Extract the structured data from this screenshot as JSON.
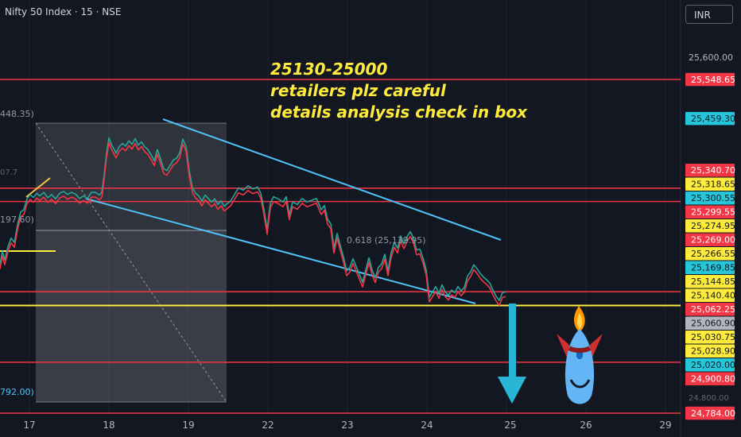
{
  "header": {
    "symbol": "Nifty 50 Index · 15 · NSE",
    "currency": "INR"
  },
  "annotation_lines": [
    "25130-25000",
    "retailers plz careful",
    "details analysis check in box"
  ],
  "fib_label": "0.618 (25,139.95)",
  "left_labels": [
    "448.35)",
    "197.60)",
    "792.00)",
    "07.7"
  ],
  "colors": {
    "bg": "#131722",
    "red": "#f23645",
    "yellow": "#ffeb3b",
    "cyan": "#4fc3f7",
    "green": "#26a69a",
    "grey": "#787b86"
  },
  "chart_data": {
    "type": "line",
    "symbol": "Nifty 50 Index",
    "interval": "15",
    "exchange": "NSE",
    "x_ticks": [
      "17",
      "18",
      "19",
      "22",
      "23",
      "24",
      "25",
      "26",
      "29"
    ],
    "y_ticks": [
      "25,600.00",
      "24,800.00"
    ],
    "price_labels": [
      {
        "text": "25,548.65",
        "bg": "#f23645",
        "fg": "#ffffff",
        "level": 25548.65
      },
      {
        "text": "25,459.30",
        "bg": "#26c6da",
        "fg": "#131722",
        "level": 25459.3
      },
      {
        "text": "25,340.70",
        "bg": "#f23645",
        "fg": "#ffffff",
        "level": 25340.7
      },
      {
        "text": "25,318.65",
        "bg": "#ffeb3b",
        "fg": "#131722",
        "level": 25318.65
      },
      {
        "text": "25,300.55",
        "bg": "#26c6da",
        "fg": "#131722",
        "level": 25300.55
      },
      {
        "text": "25,299.55",
        "bg": "#f23645",
        "fg": "#ffffff",
        "level": 25299.55
      },
      {
        "text": "25,274.95",
        "bg": "#ffeb3b",
        "fg": "#131722",
        "level": 25274.95
      },
      {
        "text": "25,269.00",
        "bg": "#f23645",
        "fg": "#ffffff",
        "level": 25269.0
      },
      {
        "text": "25,266.55",
        "bg": "#ffeb3b",
        "fg": "#131722",
        "level": 25266.55
      },
      {
        "text": "25,169.85",
        "bg": "#26c6da",
        "fg": "#131722",
        "level": 25169.85
      },
      {
        "text": "25,144.85",
        "bg": "#ffeb3b",
        "fg": "#131722",
        "level": 25144.85
      },
      {
        "text": "25,140.40",
        "bg": "#ffeb3b",
        "fg": "#131722",
        "level": 25140.4
      },
      {
        "text": "25,062.25",
        "bg": "#f23645",
        "fg": "#ffffff",
        "level": 25062.25
      },
      {
        "text": "25,060.90",
        "bg": "#b2b5be",
        "fg": "#131722",
        "level": 25060.9
      },
      {
        "text": "25,030.75",
        "bg": "#ffeb3b",
        "fg": "#131722",
        "level": 25030.75
      },
      {
        "text": "25,028.90",
        "bg": "#ffeb3b",
        "fg": "#131722",
        "level": 25028.9
      },
      {
        "text": "25,020.00",
        "bg": "#26c6da",
        "fg": "#131722",
        "level": 25020.0
      },
      {
        "text": "24,900.80",
        "bg": "#f23645",
        "fg": "#ffffff",
        "level": 24900.8
      },
      {
        "text": "24,784.00",
        "bg": "#f23645",
        "fg": "#ffffff",
        "level": 24784.0
      }
    ],
    "horizontal_levels": [
      {
        "value": 25548.65,
        "color": "red"
      },
      {
        "value": 25299.55,
        "color": "red"
      },
      {
        "value": 25269.0,
        "color": "red"
      },
      {
        "value": 25062.25,
        "color": "red"
      },
      {
        "value": 25030.75,
        "color": "yellow"
      },
      {
        "value": 24900.8,
        "color": "red"
      },
      {
        "value": 24784.0,
        "color": "red"
      }
    ],
    "price_series": [
      [
        0,
        25125
      ],
      [
        3,
        25155
      ],
      [
        6,
        25135
      ],
      [
        10,
        25165
      ],
      [
        14,
        25185
      ],
      [
        18,
        25175
      ],
      [
        22,
        25215
      ],
      [
        26,
        25245
      ],
      [
        30,
        25250
      ],
      [
        34,
        25275
      ],
      [
        38,
        25285
      ],
      [
        42,
        25278
      ],
      [
        46,
        25288
      ],
      [
        50,
        25282
      ],
      [
        55,
        25290
      ],
      [
        60,
        25278
      ],
      [
        65,
        25285
      ],
      [
        70,
        25275
      ],
      [
        75,
        25288
      ],
      [
        80,
        25292
      ],
      [
        85,
        25285
      ],
      [
        90,
        25290
      ],
      [
        95,
        25286
      ],
      [
        100,
        25276
      ],
      [
        105,
        25282
      ],
      [
        110,
        25276
      ],
      [
        115,
        25290
      ],
      [
        120,
        25290
      ],
      [
        125,
        25284
      ],
      [
        128,
        25290
      ],
      [
        131,
        25330
      ],
      [
        134,
        25380
      ],
      [
        137,
        25415
      ],
      [
        140,
        25400
      ],
      [
        143,
        25390
      ],
      [
        146,
        25380
      ],
      [
        150,
        25395
      ],
      [
        154,
        25402
      ],
      [
        158,
        25396
      ],
      [
        162,
        25408
      ],
      [
        166,
        25400
      ],
      [
        170,
        25413
      ],
      [
        174,
        25398
      ],
      [
        178,
        25406
      ],
      [
        182,
        25394
      ],
      [
        186,
        25388
      ],
      [
        190,
        25376
      ],
      [
        194,
        25362
      ],
      [
        198,
        25388
      ],
      [
        202,
        25366
      ],
      [
        206,
        25344
      ],
      [
        210,
        25340
      ],
      [
        214,
        25352
      ],
      [
        218,
        25364
      ],
      [
        222,
        25368
      ],
      [
        226,
        25380
      ],
      [
        230,
        25412
      ],
      [
        234,
        25395
      ],
      [
        238,
        25340
      ],
      [
        242,
        25300
      ],
      [
        246,
        25288
      ],
      [
        250,
        25282
      ],
      [
        254,
        25270
      ],
      [
        258,
        25284
      ],
      [
        262,
        25276
      ],
      [
        266,
        25268
      ],
      [
        270,
        25275
      ],
      [
        274,
        25262
      ],
      [
        278,
        25270
      ],
      [
        282,
        25258
      ],
      [
        286,
        25264
      ],
      [
        290,
        25270
      ],
      [
        294,
        25282
      ],
      [
        300,
        25300
      ],
      [
        306,
        25295
      ],
      [
        312,
        25305
      ],
      [
        318,
        25298
      ],
      [
        324,
        25302
      ],
      [
        328,
        25288
      ],
      [
        332,
        25250
      ],
      [
        336,
        25205
      ],
      [
        340,
        25265
      ],
      [
        344,
        25280
      ],
      [
        350,
        25275
      ],
      [
        356,
        25268
      ],
      [
        360,
        25280
      ],
      [
        364,
        25238
      ],
      [
        368,
        25268
      ],
      [
        374,
        25262
      ],
      [
        380,
        25276
      ],
      [
        386,
        25268
      ],
      [
        392,
        25272
      ],
      [
        398,
        25276
      ],
      [
        404,
        25250
      ],
      [
        408,
        25260
      ],
      [
        412,
        25228
      ],
      [
        416,
        25218
      ],
      [
        420,
        25162
      ],
      [
        424,
        25196
      ],
      [
        428,
        25168
      ],
      [
        432,
        25142
      ],
      [
        436,
        25110
      ],
      [
        440,
        25118
      ],
      [
        444,
        25138
      ],
      [
        448,
        25120
      ],
      [
        452,
        25102
      ],
      [
        456,
        25084
      ],
      [
        460,
        25112
      ],
      [
        464,
        25140
      ],
      [
        468,
        25112
      ],
      [
        472,
        25094
      ],
      [
        476,
        25118
      ],
      [
        480,
        25126
      ],
      [
        484,
        25148
      ],
      [
        488,
        25110
      ],
      [
        492,
        25152
      ],
      [
        496,
        25175
      ],
      [
        500,
        25162
      ],
      [
        504,
        25190
      ],
      [
        508,
        25172
      ],
      [
        512,
        25188
      ],
      [
        516,
        25200
      ],
      [
        520,
        25185
      ],
      [
        524,
        25158
      ],
      [
        528,
        25160
      ],
      [
        532,
        25140
      ],
      [
        536,
        25112
      ],
      [
        540,
        25050
      ],
      [
        544,
        25062
      ],
      [
        548,
        25074
      ],
      [
        552,
        25058
      ],
      [
        556,
        25078
      ],
      [
        560,
        25062
      ],
      [
        564,
        25054
      ],
      [
        568,
        25066
      ],
      [
        572,
        25060
      ],
      [
        576,
        25074
      ],
      [
        580,
        25064
      ],
      [
        584,
        25072
      ],
      [
        588,
        25098
      ],
      [
        592,
        25108
      ],
      [
        596,
        25124
      ],
      [
        600,
        25115
      ],
      [
        604,
        25104
      ],
      [
        608,
        25096
      ],
      [
        612,
        25090
      ],
      [
        616,
        25082
      ],
      [
        620,
        25066
      ],
      [
        624,
        25052
      ],
      [
        628,
        25042
      ],
      [
        632,
        25060
      ],
      [
        636,
        25062
      ]
    ]
  }
}
